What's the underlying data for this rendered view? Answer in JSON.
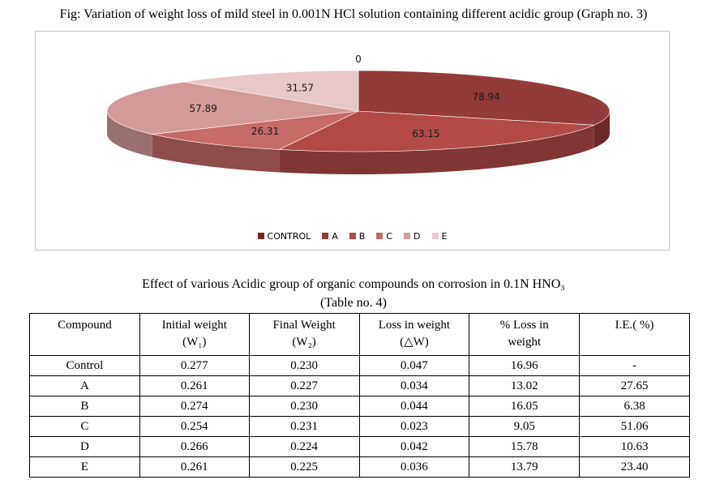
{
  "figure": {
    "title": "Fig: Variation of weight loss of mild steel in 0.001N HCl solution containing different acidic group (Graph no. 3)"
  },
  "chart_data": {
    "type": "pie",
    "style": "3d",
    "categories": [
      "CONTROL",
      "A",
      "B",
      "C",
      "D",
      "E"
    ],
    "values": [
      0,
      78.94,
      63.15,
      26.31,
      57.89,
      31.57
    ],
    "data_labels": [
      "0",
      "78.94",
      "63.15",
      "26.31",
      "57.89",
      "31.57"
    ],
    "colors": [
      "#7a2424",
      "#933a3a",
      "#b34a4a",
      "#c66a6a",
      "#d49a9a",
      "#e6c8c8"
    ],
    "legend_position": "bottom"
  },
  "table": {
    "title": "Effect of various Acidic group of organic compounds on corrosion in 0.1N HNO₃",
    "subtitle": "(Table no. 4)",
    "headers": [
      [
        "Compound",
        ""
      ],
      [
        "Initial weight",
        "(W₁)"
      ],
      [
        "Final Weight",
        "(W₂)"
      ],
      [
        "Loss in weight",
        "(△W)"
      ],
      [
        "% Loss in",
        "weight"
      ],
      [
        "I.E.( %)",
        ""
      ]
    ],
    "rows": [
      [
        "Control",
        "0.277",
        "0.230",
        "0.047",
        "16.96",
        "-"
      ],
      [
        "A",
        "0.261",
        "0.227",
        "0.034",
        "13.02",
        "27.65"
      ],
      [
        "B",
        "0.274",
        "0.230",
        "0.044",
        "16.05",
        "6.38"
      ],
      [
        "C",
        "0.254",
        "0.231",
        "0.023",
        "9.05",
        "51.06"
      ],
      [
        "D",
        "0.266",
        "0.224",
        "0.042",
        "15.78",
        "10.63"
      ],
      [
        "E",
        "0.261",
        "0.225",
        "0.036",
        "13.79",
        "23.40"
      ]
    ]
  }
}
